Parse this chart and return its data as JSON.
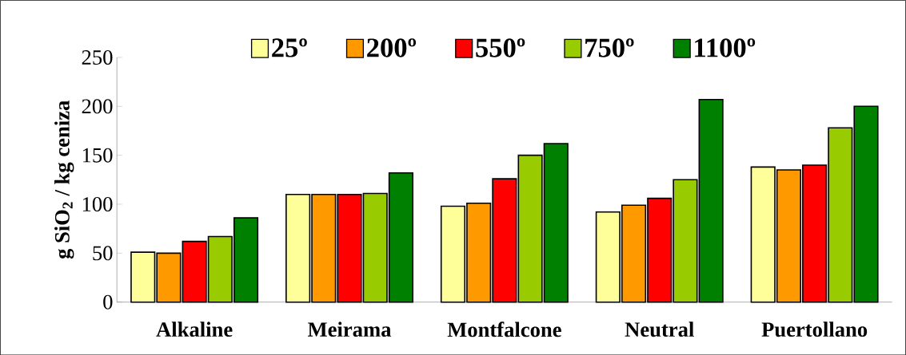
{
  "chart_data": {
    "type": "bar",
    "ylabel": "g SiO$_{2}$ / kg ceniza",
    "categories": [
      "Alkaline",
      "Meirama",
      "Montfalcone",
      "Neutral",
      "Puertollano"
    ],
    "series": [
      {
        "name": "25º",
        "color": "#ffff99",
        "values": [
          51,
          110,
          98,
          92,
          138
        ]
      },
      {
        "name": "200º",
        "color": "#ff9900",
        "values": [
          50,
          110,
          101,
          99,
          135
        ]
      },
      {
        "name": "550º",
        "color": "#ff0000",
        "values": [
          62,
          110,
          126,
          106,
          140
        ]
      },
      {
        "name": "750º",
        "color": "#99cc00",
        "values": [
          67,
          111,
          150,
          125,
          178
        ]
      },
      {
        "name": "1100º",
        "color": "#008000",
        "values": [
          86,
          132,
          162,
          207,
          200
        ]
      }
    ],
    "ylim": [
      0,
      250
    ],
    "yticks": [
      0,
      50,
      100,
      150,
      200,
      250
    ],
    "grid": false,
    "legend": "top"
  }
}
